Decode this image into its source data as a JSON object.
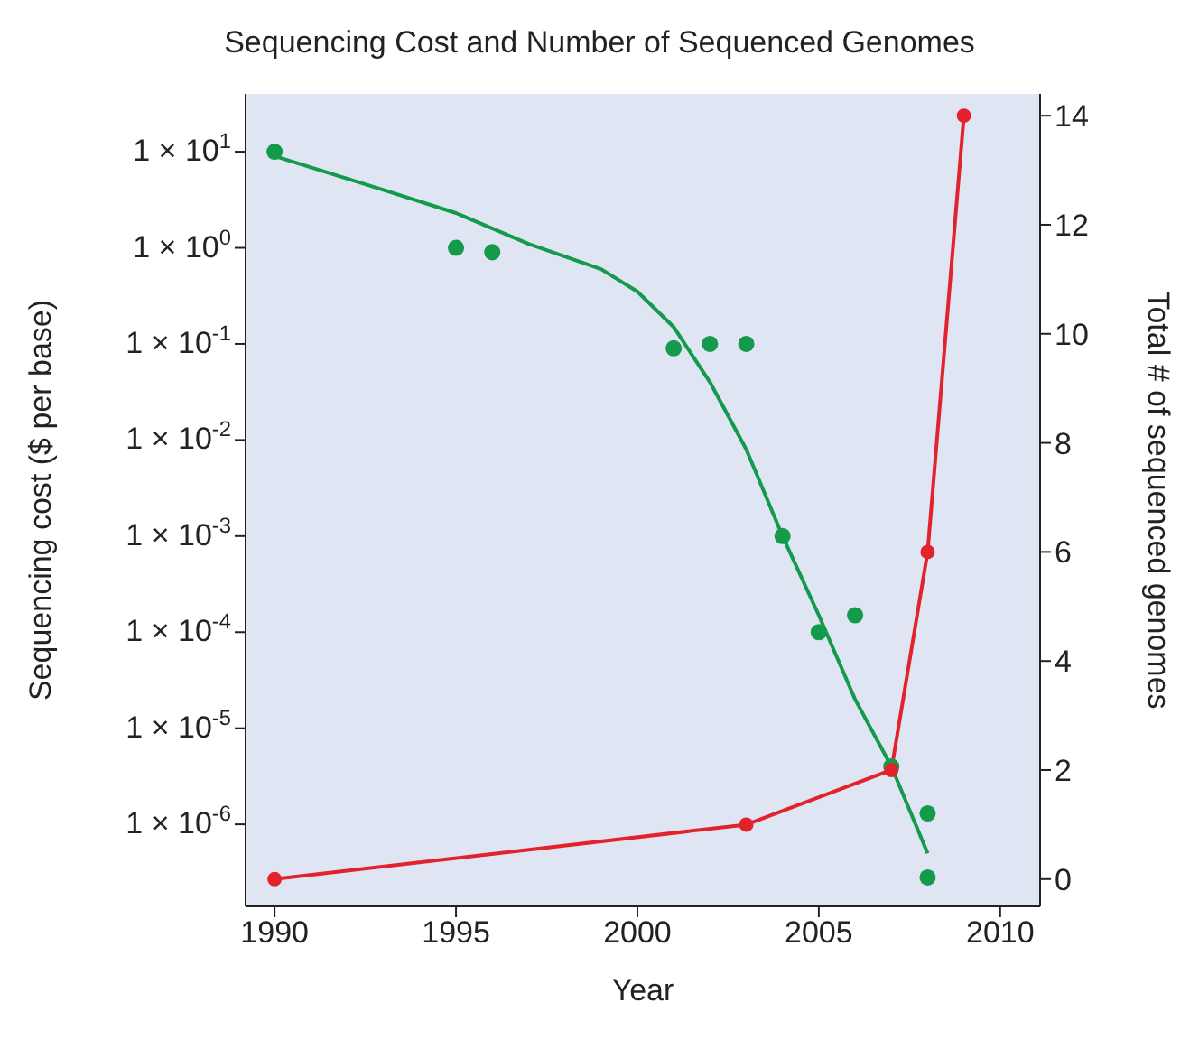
{
  "chart_data": {
    "type": "line",
    "title": "Sequencing Cost and Number of Sequenced Genomes",
    "xlabel": "Year",
    "ylabel": "Sequencing cost ($ per base)",
    "y2label": "Total # of sequenced genomes",
    "log": "y",
    "grid": false,
    "xlim": [
      1989.2,
      2011.1
    ],
    "xticks": [
      1990,
      1995,
      2000,
      2005,
      2010
    ],
    "ylim": [
      1.4e-07,
      40
    ],
    "yticks": [
      {
        "value": 10,
        "label": "1 × 10$^{1}$"
      },
      {
        "value": 1,
        "label": "1 × 10$^{0}$"
      },
      {
        "value": 0.1,
        "label": "1 × 10$^{-1}$"
      },
      {
        "value": 0.01,
        "label": "1 × 10$^{-2}$"
      },
      {
        "value": 0.001,
        "label": "1 × 10$^{-3}$"
      },
      {
        "value": 0.0001,
        "label": "1 × 10$^{-4}$"
      },
      {
        "value": 1e-05,
        "label": "1 × 10$^{-5}$"
      },
      {
        "value": 1e-06,
        "label": "1 × 10$^{-6}$"
      }
    ],
    "y2lim": [
      -0.5,
      14.4
    ],
    "y2ticks": [
      0,
      2,
      4,
      6,
      8,
      10,
      12,
      14
    ],
    "series": [
      {
        "type": "scatter",
        "color": "#139a4a",
        "marker": "circle",
        "x": [
          1990,
          1995,
          1996,
          2001,
          2002,
          2003,
          2004,
          2005,
          2006,
          2007,
          2008,
          2008
        ],
        "values": [
          10,
          1,
          0.9,
          0.09,
          0.1,
          0.1,
          0.001,
          0.0001,
          0.00015,
          4e-06,
          1.3e-06,
          2.8e-07
        ]
      },
      {
        "color": "#139a4a",
        "marker": "none",
        "x": [
          1990,
          1993,
          1995,
          1997,
          1999,
          2000,
          2001,
          2002,
          2003,
          2004,
          2005,
          2006,
          2007,
          2008
        ],
        "values": [
          9,
          4,
          2.3,
          1.1,
          0.6,
          0.35,
          0.15,
          0.04,
          0.008,
          0.001,
          0.00015,
          2e-05,
          4e-06,
          5e-07
        ]
      },
      {
        "color": "#e2232b",
        "marker": "circle",
        "axis": "y2",
        "x": [
          1990,
          2003,
          2007,
          2008,
          2009
        ],
        "values": [
          0,
          1,
          2,
          6,
          14
        ]
      }
    ]
  }
}
